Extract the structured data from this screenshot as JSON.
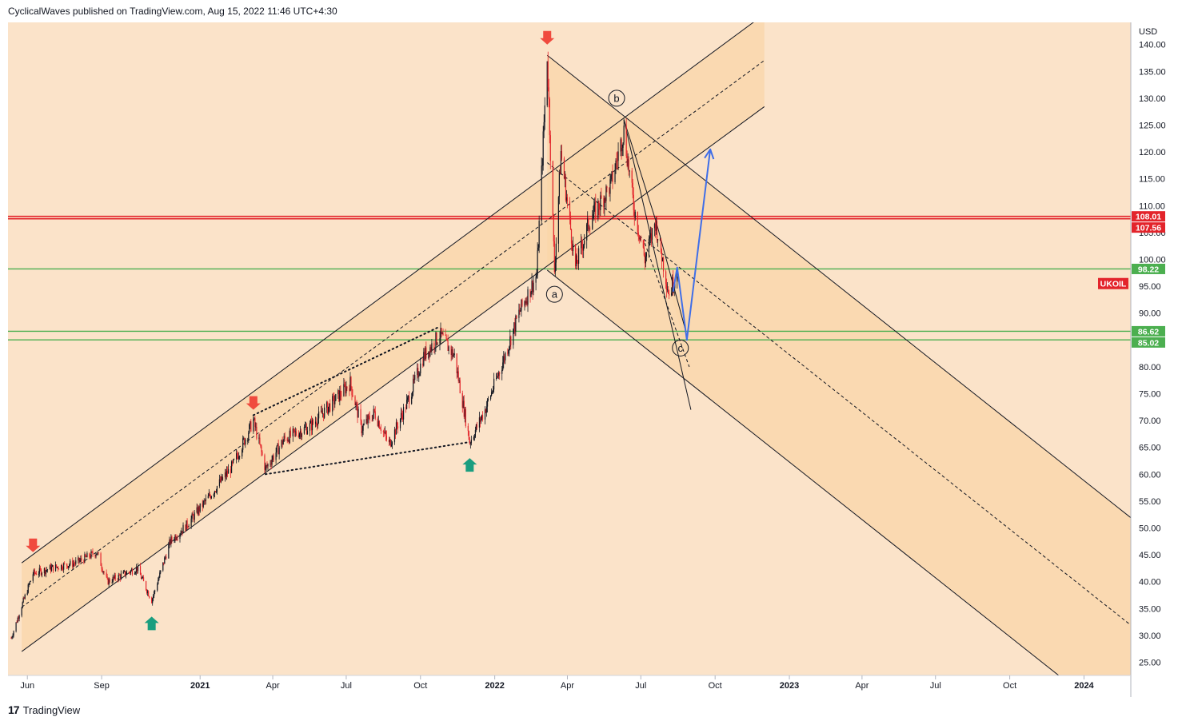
{
  "header": {
    "text": "CyclicalWaves published on TradingView.com, Aug 15, 2022 11:46 UTC+4:30"
  },
  "footer": {
    "logo": "17",
    "brand": "TradingView"
  },
  "colors": {
    "background": "#fbe3c9",
    "channel_fill": "#fad6a8",
    "candle_up": "#131722",
    "candle_down": "#e3242b",
    "resistance": "#e3242b",
    "support": "#4caf50",
    "projection": "#3f6ee8",
    "signal_down": "#f04a3e",
    "signal_up": "#1a9e7f"
  },
  "chart_data": {
    "type": "candlestick",
    "symbol": "UKOIL",
    "currency": "USD",
    "ylim": [
      22,
      142
    ],
    "y_ticks": [
      25,
      30,
      35,
      40,
      45,
      50,
      55,
      60,
      65,
      70,
      75,
      80,
      85,
      90,
      95,
      100,
      105,
      110,
      115,
      120,
      125,
      130,
      135,
      140
    ],
    "y_tick_labels": [
      "25.00",
      "30.00",
      "35.00",
      "40.00",
      "45.00",
      "50.00",
      "55.00",
      "60.00",
      "65.00",
      "70.00",
      "75.00",
      "80.00",
      "85.00",
      "90.00",
      "95.00",
      "100.00",
      "105.00",
      "110.00",
      "115.00",
      "120.00",
      "125.00",
      "130.00",
      "135.00",
      "140.00"
    ],
    "x_ticks": [
      {
        "label": "Jun",
        "date": "2020-06-01"
      },
      {
        "label": "Sep",
        "date": "2020-09-01"
      },
      {
        "label": "2021",
        "date": "2021-01-01"
      },
      {
        "label": "Apr",
        "date": "2021-04-01"
      },
      {
        "label": "Jul",
        "date": "2021-07-01"
      },
      {
        "label": "Oct",
        "date": "2021-10-01"
      },
      {
        "label": "2022",
        "date": "2022-01-01"
      },
      {
        "label": "Apr",
        "date": "2022-04-01"
      },
      {
        "label": "Jul",
        "date": "2022-07-01"
      },
      {
        "label": "Oct",
        "date": "2022-10-01"
      },
      {
        "label": "2023",
        "date": "2023-01-01"
      },
      {
        "label": "Apr",
        "date": "2023-04-01"
      },
      {
        "label": "Jul",
        "date": "2023-07-01"
      },
      {
        "label": "Oct",
        "date": "2023-10-01"
      },
      {
        "label": "2024",
        "date": "2024-01-01"
      }
    ],
    "price_path": [
      [
        "2020-05-12",
        29.5
      ],
      [
        "2020-05-25",
        35.5
      ],
      [
        "2020-06-08",
        41.5
      ],
      [
        "2020-06-30",
        42.5
      ],
      [
        "2020-07-31",
        43.5
      ],
      [
        "2020-08-26",
        45.5
      ],
      [
        "2020-09-08",
        40.0
      ],
      [
        "2020-09-30",
        41.5
      ],
      [
        "2020-10-15",
        42.5
      ],
      [
        "2020-11-02",
        36.5
      ],
      [
        "2020-11-25",
        47.5
      ],
      [
        "2020-12-15",
        50.5
      ],
      [
        "2021-01-13",
        56.0
      ],
      [
        "2021-02-10",
        61.5
      ],
      [
        "2021-03-08",
        70.0
      ],
      [
        "2021-03-23",
        61.0
      ],
      [
        "2021-04-15",
        66.5
      ],
      [
        "2021-05-18",
        69.0
      ],
      [
        "2021-06-15",
        73.5
      ],
      [
        "2021-07-06",
        77.0
      ],
      [
        "2021-07-20",
        68.5
      ],
      [
        "2021-08-05",
        71.5
      ],
      [
        "2021-08-23",
        65.5
      ],
      [
        "2021-09-15",
        73.5
      ],
      [
        "2021-10-05",
        82.0
      ],
      [
        "2021-10-25",
        86.0
      ],
      [
        "2021-11-12",
        82.0
      ],
      [
        "2021-12-01",
        66.0
      ],
      [
        "2021-12-20",
        72.0
      ],
      [
        "2022-01-10",
        80.5
      ],
      [
        "2022-01-31",
        90.0
      ],
      [
        "2022-02-22",
        97.0
      ],
      [
        "2022-03-07",
        138.0
      ],
      [
        "2022-03-16",
        98.0
      ],
      [
        "2022-03-24",
        120.0
      ],
      [
        "2022-04-11",
        98.5
      ],
      [
        "2022-04-28",
        107.0
      ],
      [
        "2022-05-25",
        114.0
      ],
      [
        "2022-06-10",
        124.0
      ],
      [
        "2022-06-22",
        110.0
      ],
      [
        "2022-07-06",
        100.0
      ],
      [
        "2022-07-19",
        107.0
      ],
      [
        "2022-08-05",
        93.5
      ],
      [
        "2022-08-15",
        98.0
      ]
    ],
    "horizontal_levels": [
      {
        "value": 108.01,
        "label": "108.01",
        "role": "resistance"
      },
      {
        "value": 107.56,
        "label": "107.56",
        "role": "resistance"
      },
      {
        "value": 98.22,
        "label": "98.22",
        "role": "support"
      },
      {
        "value": 86.62,
        "label": "86.62",
        "role": "support"
      },
      {
        "value": 85.02,
        "label": "85.02",
        "role": "support"
      }
    ],
    "last_price_label": "UKOIL",
    "rising_channel": {
      "lower": [
        [
          "2020-05-25",
          27.0
        ],
        [
          "2022-02-28",
          98.0
        ]
      ],
      "upper": [
        [
          "2020-05-25",
          43.5
        ],
        [
          "2022-02-28",
          115.0
        ]
      ],
      "mid": [
        [
          "2020-05-25",
          35.25
        ],
        [
          "2022-02-28",
          106.5
        ]
      ],
      "extend_to": "2022-12-01"
    },
    "falling_channel": {
      "upper": [
        [
          "2022-03-07",
          138.0
        ],
        [
          "2024-03-15",
          50.0
        ]
      ],
      "lower": [
        [
          "2022-03-07",
          98.0
        ],
        [
          "2024-03-15",
          10.0
        ]
      ],
      "mid": [
        [
          "2022-03-07",
          118.0
        ],
        [
          "2024-03-15",
          30.0
        ]
      ]
    },
    "wedge_pattern": {
      "upper": [
        [
          "2021-03-08",
          71.0
        ],
        [
          "2021-10-25",
          87.5
        ]
      ],
      "lower": [
        [
          "2021-03-23",
          60.0
        ],
        [
          "2021-12-01",
          66.0
        ]
      ]
    },
    "corrective_channel": {
      "upper": [
        [
          "2022-06-10",
          126.0
        ],
        [
          "2022-07-20",
          107.0
        ],
        [
          "2022-08-25",
          87.0
        ]
      ],
      "lower": [
        [
          "2022-06-10",
          126.0
        ],
        [
          "2022-09-01",
          72.0
        ]
      ],
      "inner": [
        [
          "2022-07-06",
          103.0
        ],
        [
          "2022-08-30",
          80.0
        ]
      ]
    },
    "projection_path": [
      [
        "2022-08-10",
        94.0
      ],
      [
        "2022-08-15",
        98.5
      ],
      [
        "2022-08-27",
        85.0
      ],
      [
        "2022-09-25",
        120.5
      ]
    ],
    "wave_labels": [
      {
        "label": "a",
        "date": "2022-03-16",
        "value": 93.5
      },
      {
        "label": "b",
        "date": "2022-06-01",
        "value": 130.0
      },
      {
        "label": "c",
        "date": "2022-08-19",
        "value": 83.5
      }
    ],
    "signals": [
      {
        "type": "down",
        "date": "2020-06-08",
        "value": 45.5
      },
      {
        "type": "up",
        "date": "2020-11-02",
        "value": 33.5
      },
      {
        "type": "down",
        "date": "2021-03-08",
        "value": 72.0
      },
      {
        "type": "up",
        "date": "2021-12-01",
        "value": 63.0
      },
      {
        "type": "down",
        "date": "2022-03-07",
        "value": 140.0
      }
    ]
  }
}
